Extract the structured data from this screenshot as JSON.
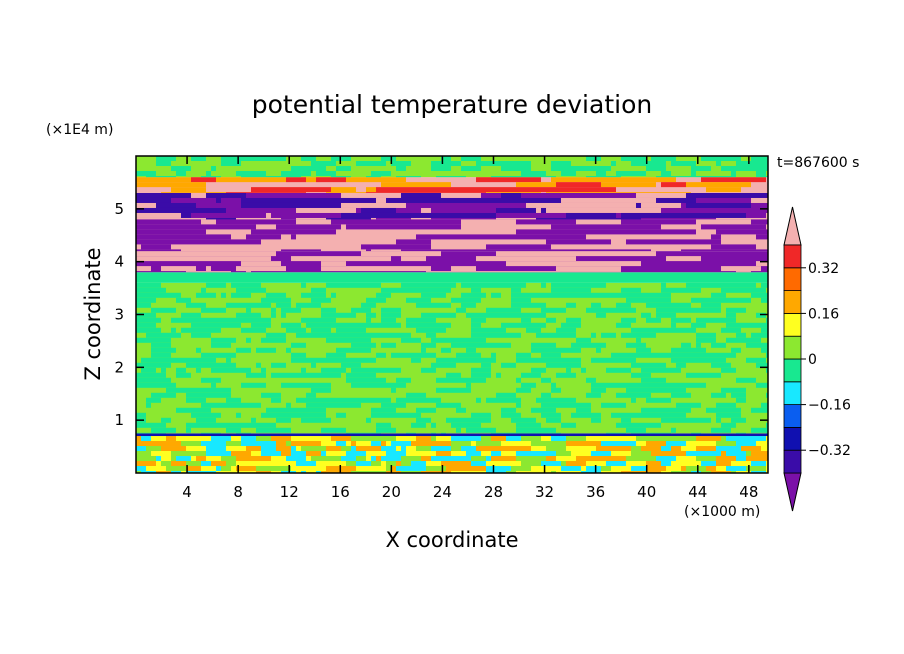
{
  "chart_data": {
    "type": "heatmap",
    "title": "potential temperature deviation",
    "xlabel": "X coordinate",
    "ylabel": "Z coordinate",
    "x_unit": "(×1000 m)",
    "y_unit": "(×1E4 m)",
    "time_label": "t=867600 s",
    "xlim": [
      0,
      49.5
    ],
    "ylim": [
      0,
      6
    ],
    "x_ticks": [
      4,
      8,
      12,
      16,
      20,
      24,
      28,
      32,
      36,
      40,
      44,
      48
    ],
    "y_ticks": [
      1,
      2,
      3,
      4,
      5
    ],
    "colorbar": {
      "levels": [
        -0.4,
        -0.32,
        -0.24,
        -0.16,
        -0.08,
        0,
        0.08,
        0.16,
        0.24,
        0.32,
        0.4
      ],
      "labeled_levels": [
        0.32,
        0.16,
        0,
        -0.16,
        -0.32
      ],
      "colors": [
        "#7b10a8",
        "#3a0ca8",
        "#1010b0",
        "#0a5ef0",
        "#18e8ff",
        "#18e890",
        "#8ce830",
        "#ffff20",
        "#ffa800",
        "#ff6a00",
        "#f02828",
        "#f4b0b0"
      ],
      "extend": "both"
    },
    "bands": [
      {
        "z_from": 0.0,
        "z_to": 0.7,
        "class": "near-zero to negative, mixed",
        "colors": [
          "#18e8ff",
          "#8ce830",
          "#ffff20",
          "#ffa800"
        ]
      },
      {
        "z_from": 0.7,
        "z_to": 0.75,
        "class": "thin negative layer",
        "colors": [
          "#1010b0"
        ]
      },
      {
        "z_from": 0.75,
        "z_to": 3.6,
        "class": "near zero",
        "colors": [
          "#8ce830",
          "#18e890"
        ]
      },
      {
        "z_from": 3.6,
        "z_to": 3.8,
        "class": "near zero",
        "colors": [
          "#18e890"
        ]
      },
      {
        "z_from": 3.8,
        "z_to": 4.2,
        "class": "alternating strong +/-",
        "colors": [
          "#7b10a8",
          "#f4b0b0"
        ]
      },
      {
        "z_from": 4.2,
        "z_to": 4.8,
        "class": "alternating strong +/-",
        "colors": [
          "#f4b0b0",
          "#7b10a8"
        ]
      },
      {
        "z_from": 4.8,
        "z_to": 5.3,
        "class": "alternating strong +/-",
        "colors": [
          "#7b10a8",
          "#f4b0b0",
          "#3a0ca8"
        ]
      },
      {
        "z_from": 5.3,
        "z_to": 5.6,
        "class": "strong positive",
        "colors": [
          "#f4b0b0",
          "#f02828",
          "#ffa800"
        ]
      },
      {
        "z_from": 5.6,
        "z_to": 6.0,
        "class": "near zero",
        "colors": [
          "#8ce830",
          "#18e890"
        ]
      }
    ]
  }
}
